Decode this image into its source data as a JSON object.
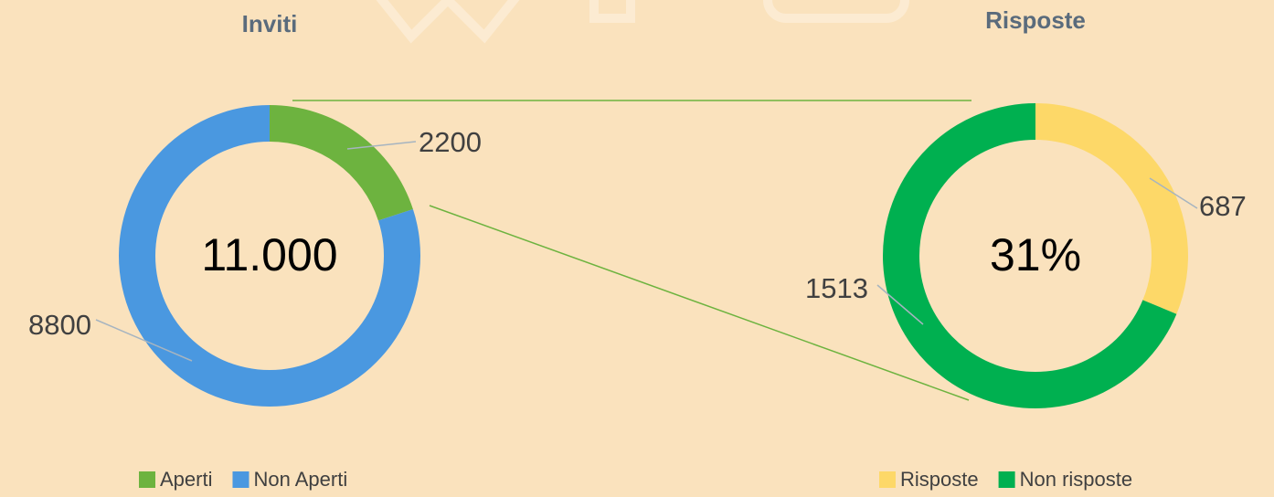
{
  "chart_data": [
    {
      "type": "doughnut",
      "title": "Inviti",
      "center_label": "11.000",
      "categories": [
        "Aperti",
        "Non Aperti"
      ],
      "values": [
        2200,
        8800
      ],
      "colors": [
        "#6db33f",
        "#4a98e0"
      ]
    },
    {
      "type": "doughnut",
      "title": "Risposte",
      "center_label": "31%",
      "categories": [
        "Risposte",
        "Non risposte"
      ],
      "values": [
        687,
        1513
      ],
      "colors": [
        "#fdd868",
        "#00b050"
      ]
    }
  ]
}
